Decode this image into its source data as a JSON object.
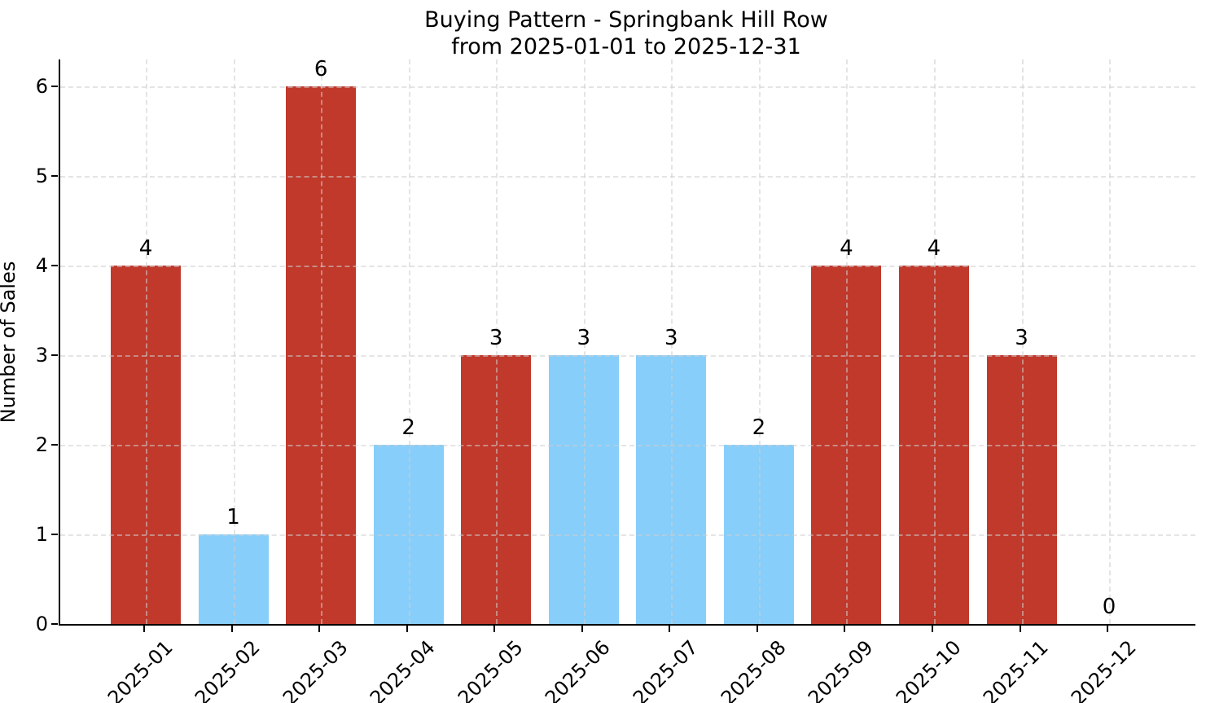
{
  "chart_data": {
    "type": "bar",
    "title": "Buying Pattern - Springbank Hill Row",
    "subtitle": "from 2025-01-01 to 2025-12-31",
    "xlabel": "",
    "ylabel": "Number of Sales",
    "categories": [
      "2025-01",
      "2025-02",
      "2025-03",
      "2025-04",
      "2025-05",
      "2025-06",
      "2025-07",
      "2025-08",
      "2025-09",
      "2025-10",
      "2025-11",
      "2025-12"
    ],
    "values": [
      4,
      1,
      6,
      2,
      3,
      3,
      3,
      2,
      4,
      4,
      3,
      0
    ],
    "bar_colors": [
      "#c0392b",
      "#87cefa",
      "#c0392b",
      "#87cefa",
      "#c0392b",
      "#87cefa",
      "#87cefa",
      "#87cefa",
      "#c0392b",
      "#c0392b",
      "#c0392b",
      "#c0392b"
    ],
    "yticks": [
      0,
      1,
      2,
      3,
      4,
      5,
      6
    ],
    "ylim": [
      0,
      6.3
    ],
    "grid": true,
    "legend": "none",
    "colors": {
      "red_bar": "#c0392b",
      "blue_bar": "#87cefa",
      "grid": "#cdcdcd",
      "axis": "#000000",
      "text": "#000000",
      "background": "#ffffff"
    }
  }
}
